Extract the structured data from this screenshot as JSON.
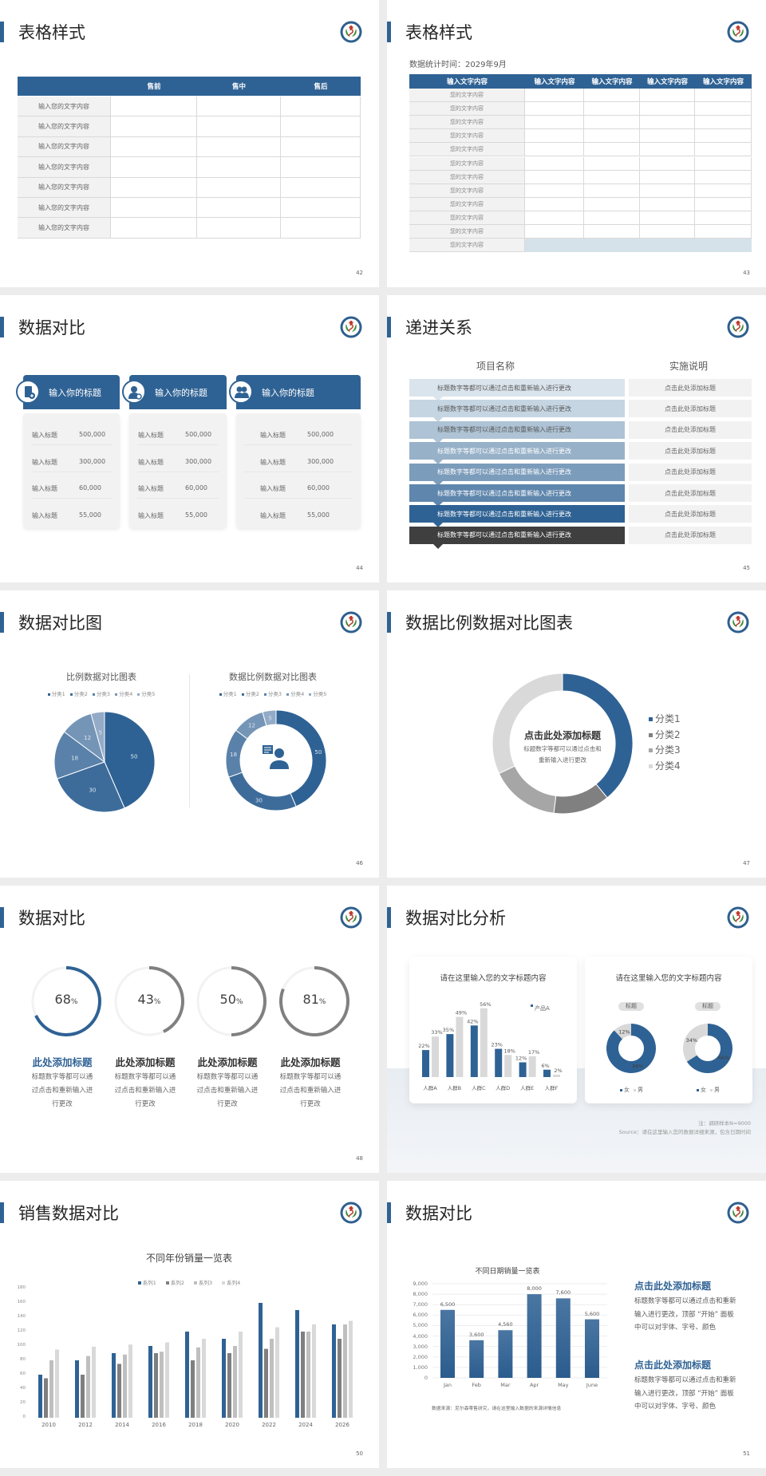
{
  "s42": {
    "title": "表格样式",
    "page": "42",
    "headers": [
      "",
      "售前",
      "售中",
      "售后"
    ],
    "rows": [
      "输入您的文字内容",
      "输入您的文字内容",
      "输入您的文字内容",
      "输入您的文字内容",
      "输入您的文字内容",
      "输入您的文字内容",
      "输入您的文字内容"
    ]
  },
  "s43": {
    "title": "表格样式",
    "subtitle": "数据统计时间：2029年9月",
    "page": "43",
    "headers": [
      "输入文字内容",
      "输入文字内容",
      "输入文字内容",
      "输入文字内容",
      "输入文字内容"
    ],
    "rows": [
      "您的文字内容",
      "您的文字内容",
      "您的文字内容",
      "您的文字内容",
      "您的文字内容",
      "您的文字内容",
      "您的文字内容",
      "您的文字内容",
      "您的文字内容",
      "您的文字内容",
      "您的文字内容",
      "您的文字内容"
    ]
  },
  "s44": {
    "title": "数据对比",
    "page": "44",
    "cards": [
      {
        "title": "输入你的标题",
        "icon": "phone-user-icon",
        "rows": [
          {
            "label": "输入标题",
            "value": "500,000"
          },
          {
            "label": "输入标题",
            "value": "300,000"
          },
          {
            "label": "输入标题",
            "value": "60,000"
          },
          {
            "label": "输入标题",
            "value": "55,000"
          }
        ]
      },
      {
        "title": "输入你的标题",
        "icon": "user-settings-icon",
        "rows": [
          {
            "label": "输入标题",
            "value": "500,000"
          },
          {
            "label": "输入标题",
            "value": "300,000"
          },
          {
            "label": "输入标题",
            "value": "60,000"
          },
          {
            "label": "输入标题",
            "value": "55,000"
          }
        ]
      },
      {
        "title": "输入你的标题",
        "icon": "user-group-icon",
        "rows": [
          {
            "label": "输入标题",
            "value": "500,000"
          },
          {
            "label": "输入标题",
            "value": "300,000"
          },
          {
            "label": "输入标题",
            "value": "60,000"
          },
          {
            "label": "输入标题",
            "value": "55,000"
          }
        ]
      }
    ]
  },
  "s45": {
    "title": "递进关系",
    "page": "45",
    "col1": "项目名称",
    "col2": "实施说明",
    "colors": [
      "#dae4ec",
      "#c5d5e2",
      "#aec3d5",
      "#97b1c8",
      "#7c9cbb",
      "#5f86ad",
      "#2f6294",
      "#3f3f3f"
    ],
    "rows": [
      {
        "text": "标题数字等都可以通过点击和重新输入进行更改",
        "note": "点击此处添加标题"
      },
      {
        "text": "标题数字等都可以通过点击和重新输入进行更改",
        "note": "点击此处添加标题"
      },
      {
        "text": "标题数字等都可以通过点击和重新输入进行更改",
        "note": "点击此处添加标题"
      },
      {
        "text": "标题数字等都可以通过点击和重新输入进行更改",
        "note": "点击此处添加标题"
      },
      {
        "text": "标题数字等都可以通过点击和重新输入进行更改",
        "note": "点击此处添加标题"
      },
      {
        "text": "标题数字等都可以通过点击和重新输入进行更改",
        "note": "点击此处添加标题"
      },
      {
        "text": "标题数字等都可以通过点击和重新输入进行更改",
        "note": "点击此处添加标题"
      },
      {
        "text": "标题数字等都可以通过点击和重新输入进行更改",
        "note": "点击此处添加标题"
      }
    ]
  },
  "s46": {
    "title": "数据对比图",
    "page": "46"
  },
  "s47": {
    "title": "数据比例数据对比图表",
    "page": "47",
    "center_title": "点击此处添加标题",
    "center_text": [
      "标题数字等都可以通过点击和",
      "重新输入进行更改"
    ]
  },
  "s48": {
    "title": "数据对比",
    "page": "48",
    "items": [
      {
        "value": 68,
        "num": "68",
        "unit": "%",
        "heading": "此处添加标题",
        "lines": [
          "标题数字等都可以通",
          "过点击和重新输入进",
          "行更改"
        ],
        "color": "#2f6294"
      },
      {
        "value": 43,
        "num": "43",
        "unit": "%",
        "heading": "此处添加标题",
        "lines": [
          "标题数字等都可以通",
          "过点击和重新输入进",
          "行更改"
        ],
        "color": "#808080"
      },
      {
        "value": 50,
        "num": "50",
        "unit": "%",
        "heading": "此处添加标题",
        "lines": [
          "标题数字等都可以通",
          "过点击和重新输入进",
          "行更改"
        ],
        "color": "#808080"
      },
      {
        "value": 81,
        "num": "81",
        "unit": "%",
        "heading": "此处添加标题",
        "lines": [
          "标题数字等都可以通",
          "过点击和重新输入进",
          "行更改"
        ],
        "color": "#808080"
      }
    ]
  },
  "s49": {
    "title": "数据对比分析",
    "page": "49",
    "card1_title": "请在这里输入您的文字标题内容",
    "card2_title": "请在这里输入您的文字标题内容",
    "note1": "注：调研样本N=9000",
    "note2": "Source：请在这里输入您的数据详细来源，包含日期时间"
  },
  "s50": {
    "title": "销售数据对比",
    "page": "50"
  },
  "s51": {
    "title": "数据对比",
    "page": "51",
    "source": "数据来源：尼尔森零售研究，请在这里输入数据的来源详情信息",
    "blocks": [
      {
        "heading": "点击此处添加标题",
        "lines": [
          "标题数字等都可以通过点击和重新",
          "输入进行更改，顶部 “开始” 面板",
          "中可以对字体、字号、颜色"
        ]
      },
      {
        "heading": "点击此处添加标题",
        "lines": [
          "标题数字等都可以通过点击和重新",
          "输入进行更改，顶部 “开始” 面板",
          "中可以对字体、字号、颜色"
        ]
      }
    ]
  },
  "colors": {
    "accent": "#2f6294",
    "dark": "#3f3f3f"
  },
  "chart_data": [
    {
      "type": "pie",
      "title": "比例数据对比图表",
      "categories": [
        "分类1",
        "分类2",
        "分类3",
        "分类4",
        "分类5"
      ],
      "values": [
        50,
        30,
        18,
        12,
        5
      ],
      "colors": [
        "#2f6294",
        "#3d6c9b",
        "#5a81a9",
        "#7595b7",
        "#93abc6"
      ],
      "legend": "top"
    },
    {
      "type": "pie",
      "variant": "donut",
      "title": "数据比例数据对比图表",
      "categories": [
        "分类1",
        "分类2",
        "分类3",
        "分类4",
        "分类5"
      ],
      "values": [
        50,
        30,
        18,
        12,
        5
      ],
      "colors": [
        "#2f6294",
        "#3d6c9b",
        "#5a81a9",
        "#7595b7",
        "#93abc6"
      ],
      "legend": "top"
    },
    {
      "type": "pie",
      "variant": "donut",
      "categories": [
        "分类1",
        "分类2",
        "分类3",
        "分类4"
      ],
      "values": [
        39,
        13,
        16,
        32
      ],
      "colors": [
        "#2f6294",
        "#808080",
        "#a6a6a6",
        "#d9d9d9"
      ],
      "legend": "right"
    },
    {
      "type": "bar",
      "categories": [
        "人群A",
        "人群B",
        "人群C",
        "人群D",
        "人群E",
        "人群F"
      ],
      "series": [
        {
          "name": "产品A",
          "values": [
            22,
            35,
            42,
            23,
            12,
            6
          ],
          "color": "#2f6294"
        },
        {
          "values": [
            33,
            49,
            56,
            18,
            17,
            2
          ],
          "color": "#d9d9d9"
        }
      ],
      "unit": "%",
      "legend": "top-right"
    },
    {
      "type": "pie",
      "variant": "donut",
      "label": "标题",
      "categories": [
        "女",
        "男"
      ],
      "values": [
        88,
        12
      ],
      "colors": [
        "#2f6294",
        "#d9d9d9"
      ],
      "labels": [
        "88%",
        "12%"
      ],
      "legend": "bottom"
    },
    {
      "type": "pie",
      "variant": "donut",
      "label": "标题",
      "categories": [
        "女",
        "男"
      ],
      "values": [
        66,
        34
      ],
      "colors": [
        "#2f6294",
        "#d9d9d9"
      ],
      "labels": [
        "66%",
        "34%"
      ],
      "legend": "bottom"
    },
    {
      "type": "bar",
      "title": "不同年份销量一览表",
      "categories": [
        "2010",
        "2012",
        "2014",
        "2016",
        "2018",
        "2020",
        "2022",
        "2024",
        "2026"
      ],
      "series": [
        {
          "name": "系列1",
          "values": [
            60,
            80,
            90,
            100,
            120,
            110,
            160,
            150,
            130
          ],
          "color": "#2f6294"
        },
        {
          "name": "系列2",
          "values": [
            55,
            60,
            75,
            90,
            80,
            90,
            96,
            120,
            110
          ],
          "color": "#7f7f7f"
        },
        {
          "name": "系列3",
          "values": [
            80,
            86,
            88,
            92,
            98,
            100,
            110,
            120,
            130
          ],
          "color": "#bfbfbf"
        },
        {
          "name": "系列4",
          "values": [
            95,
            99,
            102,
            105,
            110,
            120,
            126,
            130,
            135
          ],
          "color": "#d9d9d9"
        }
      ],
      "ylim": [
        0,
        180
      ],
      "yticks": [
        "0",
        "20",
        "40",
        "60",
        "80",
        "100",
        "120",
        "140",
        "160",
        "180"
      ],
      "legend": "top",
      "grid": false
    },
    {
      "type": "bar",
      "title": "不同日期销量一览表",
      "categories": [
        "Jan",
        "Feb",
        "Mar",
        "Apr",
        "May",
        "June"
      ],
      "values": [
        6500,
        3600,
        4560,
        8000,
        7600,
        5600
      ],
      "labels": [
        "6,500",
        "3,600",
        "4,560",
        "8,000",
        "7,600",
        "5,600"
      ],
      "ylim": [
        0,
        9000
      ],
      "yticks": [
        "0",
        "1,000",
        "2,000",
        "3,000",
        "4,000",
        "5,000",
        "6,000",
        "7,000",
        "8,000",
        "9,000"
      ],
      "grid": true,
      "color": "#2f6294"
    }
  ]
}
